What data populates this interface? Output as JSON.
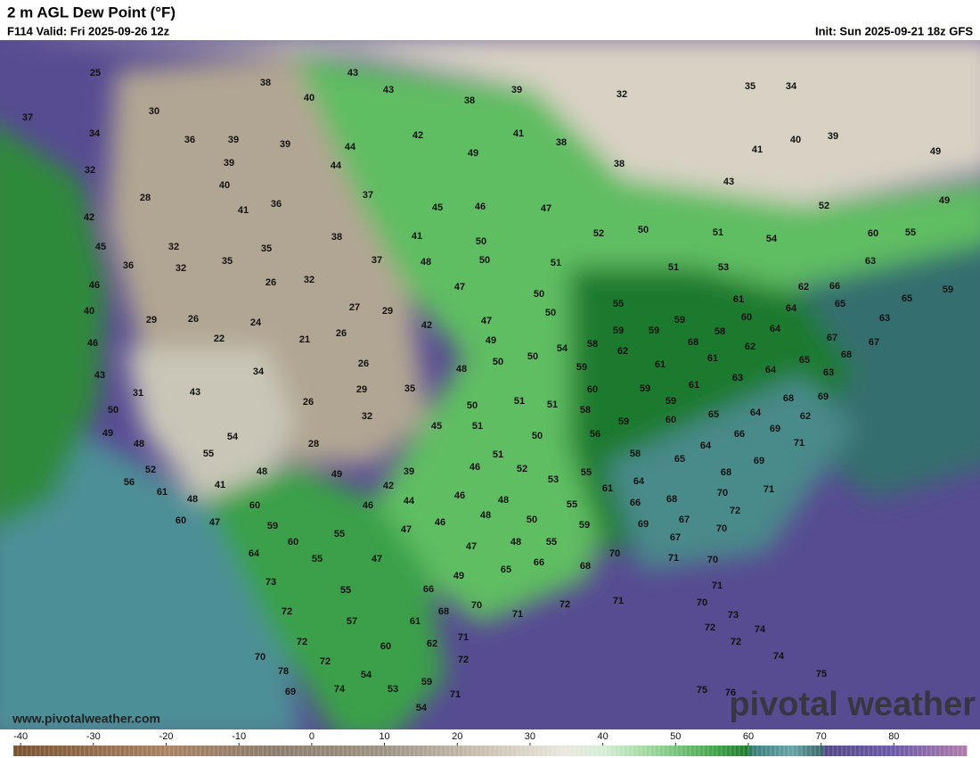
{
  "header": {
    "title": "2 m AGL Dew Point (°F)",
    "valid": "F114 Valid: Fri 2025-09-26 12z",
    "init": "Init: Sun 2025-09-21 18z GFS"
  },
  "map": {
    "labels": [
      25,
      38,
      43,
      43,
      40,
      38,
      39,
      32,
      35,
      34,
      37,
      30,
      34,
      36,
      39,
      39,
      44,
      42,
      41,
      38,
      40,
      39,
      49,
      32,
      39,
      44,
      49,
      38,
      41,
      43,
      28,
      40,
      41,
      36,
      37,
      45,
      46,
      47,
      52,
      49,
      42,
      32,
      35,
      38,
      41,
      50,
      52,
      50,
      51,
      54,
      60,
      55,
      45,
      36,
      32,
      35,
      37,
      48,
      50,
      51,
      51,
      53,
      63,
      46,
      26,
      32,
      47,
      50,
      55,
      61,
      62,
      66,
      65,
      59,
      40,
      29,
      26,
      24,
      27,
      29,
      42,
      47,
      50,
      59,
      59,
      59,
      60,
      64,
      65,
      63,
      46,
      22,
      21,
      26,
      49,
      54,
      58,
      68,
      58,
      64,
      67,
      67,
      62,
      43,
      34,
      26,
      50,
      50,
      48,
      59,
      62,
      61,
      61,
      64,
      65,
      68,
      63,
      31,
      43,
      29,
      35,
      60,
      59,
      61,
      63,
      68,
      69,
      50,
      26,
      32,
      50,
      51,
      51,
      58,
      59,
      65,
      64,
      62,
      49,
      54,
      45,
      51,
      50,
      56,
      59,
      60,
      66,
      69,
      48,
      28,
      64,
      71,
      52,
      55,
      48,
      49,
      39,
      51,
      46,
      52,
      58,
      65,
      69,
      56,
      41,
      42,
      53,
      55,
      68,
      64,
      61,
      61,
      48,
      60,
      46,
      44,
      46,
      48,
      70,
      71,
      60,
      47,
      59,
      47,
      46,
      48,
      50,
      55,
      66,
      68,
      72,
      60,
      55,
      47,
      48,
      55,
      59,
      69,
      67,
      70,
      64,
      55,
      47,
      67,
      65,
      66,
      68,
      70,
      71,
      70,
      73,
      55,
      49,
      66,
      72,
      71,
      71,
      72,
      68,
      70,
      71,
      70,
      73,
      57,
      61,
      72,
      74,
      72,
      62,
      71,
      72,
      60,
      70,
      72,
      72,
      74,
      78,
      54,
      59,
      75,
      69,
      74,
      53,
      71,
      75,
      76,
      54
    ]
  },
  "colorbar": {
    "range": [
      -41,
      90
    ],
    "ticks": [
      -40,
      -30,
      -20,
      -10,
      0,
      10,
      20,
      30,
      40,
      50,
      60,
      70,
      80
    ],
    "stops": [
      [
        -41,
        "#7a5230"
      ],
      [
        -20,
        "#a98262"
      ],
      [
        -5,
        "#8c7c6c"
      ],
      [
        10,
        "#9d9284"
      ],
      [
        25,
        "#cfc6b6"
      ],
      [
        35,
        "#ebe8e0"
      ],
      [
        40,
        "#d5eed5"
      ],
      [
        47,
        "#98d598"
      ],
      [
        55,
        "#46a84c"
      ],
      [
        60,
        "#1c7a2c"
      ],
      [
        60.5,
        "#3b7d7c"
      ],
      [
        66,
        "#67a4a6"
      ],
      [
        70,
        "#3a6a6c"
      ],
      [
        70.5,
        "#54488a"
      ],
      [
        80,
        "#6c5aa8"
      ],
      [
        90,
        "#b07cab"
      ]
    ]
  },
  "footer": {
    "url": "www.pivotalweather.com",
    "brand": "pivotal weather"
  }
}
